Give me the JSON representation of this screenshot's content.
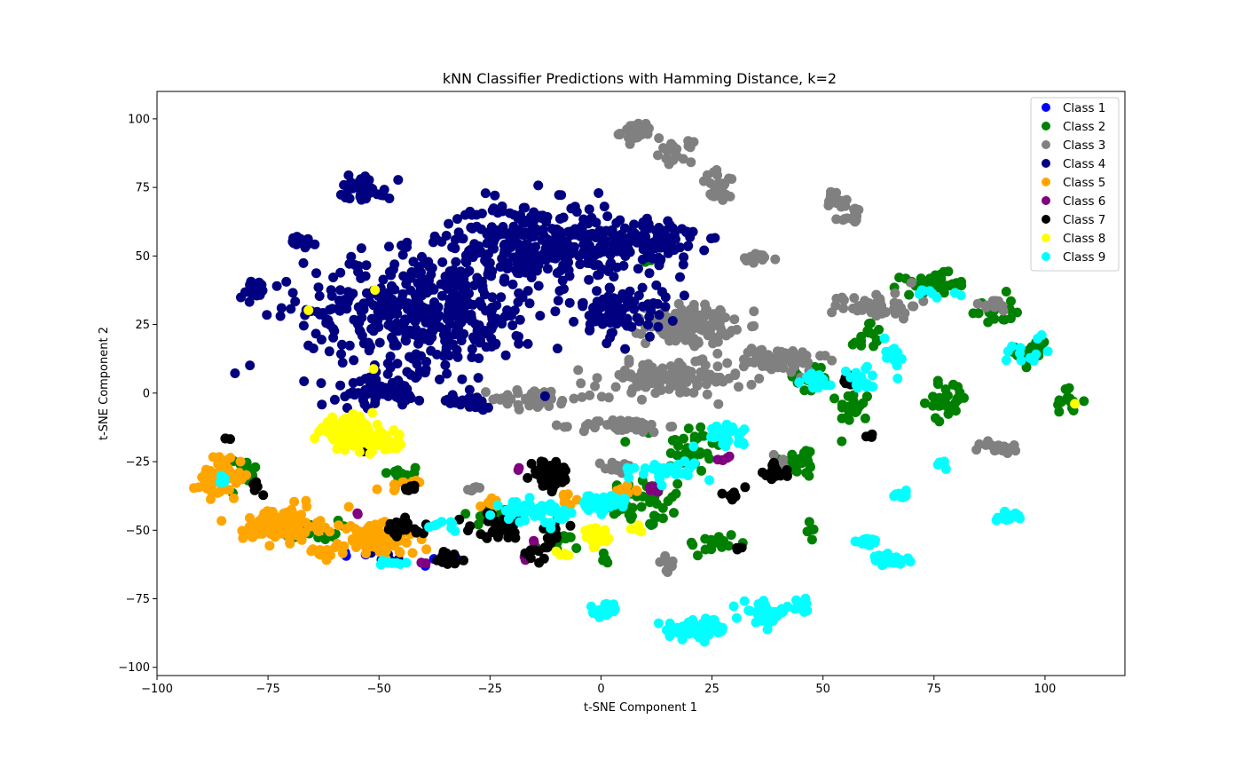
{
  "chart_data": {
    "type": "scatter",
    "title": "kNN Classifier Predictions with Hamming Distance, k=2",
    "xlabel": "t-SNE Component 1",
    "ylabel": "t-SNE Component 2",
    "xlim": [
      -100,
      118
    ],
    "ylim": [
      -103,
      110
    ],
    "xticks": [
      -100,
      -75,
      -50,
      -25,
      0,
      25,
      50,
      75,
      100
    ],
    "yticks": [
      -100,
      -75,
      -50,
      -25,
      0,
      25,
      50,
      75,
      100
    ],
    "grid": false,
    "legend_position": "top-right",
    "series": [
      {
        "name": "Class 1",
        "color": "#0000ff",
        "clusters": [
          {
            "x": -58,
            "y": -58,
            "sx": 3,
            "sy": 2,
            "n": 3
          },
          {
            "x": -40,
            "y": -62,
            "sx": 3,
            "sy": 2,
            "n": 2
          }
        ]
      },
      {
        "name": "Class 2",
        "color": "#008000",
        "clusters": [
          {
            "x": -45,
            "y": -30,
            "sx": 4,
            "sy": 3,
            "n": 15
          },
          {
            "x": -25,
            "y": -45,
            "sx": 5,
            "sy": 4,
            "n": 15
          },
          {
            "x": 10,
            "y": -40,
            "sx": 8,
            "sy": 8,
            "n": 45
          },
          {
            "x": 20,
            "y": -20,
            "sx": 6,
            "sy": 8,
            "n": 35
          },
          {
            "x": 25,
            "y": -55,
            "sx": 5,
            "sy": 4,
            "n": 18
          },
          {
            "x": 45,
            "y": -25,
            "sx": 4,
            "sy": 5,
            "n": 25
          },
          {
            "x": 47,
            "y": 5,
            "sx": 4,
            "sy": 5,
            "n": 20
          },
          {
            "x": 57,
            "y": -5,
            "sx": 3,
            "sy": 5,
            "n": 22
          },
          {
            "x": 60,
            "y": 20,
            "sx": 3,
            "sy": 6,
            "n": 15
          },
          {
            "x": 75,
            "y": 40,
            "sx": 6,
            "sy": 3,
            "n": 35
          },
          {
            "x": 88,
            "y": 30,
            "sx": 4,
            "sy": 5,
            "n": 20
          },
          {
            "x": 97,
            "y": 15,
            "sx": 3,
            "sy": 6,
            "n": 20
          },
          {
            "x": 105,
            "y": -3,
            "sx": 3,
            "sy": 4,
            "n": 15
          },
          {
            "x": 78,
            "y": -2,
            "sx": 4,
            "sy": 6,
            "n": 30
          },
          {
            "x": -65,
            "y": -50,
            "sx": 5,
            "sy": 3,
            "n": 20
          },
          {
            "x": -80,
            "y": -30,
            "sx": 3,
            "sy": 6,
            "n": 12
          },
          {
            "x": -10,
            "y": -55,
            "sx": 4,
            "sy": 3,
            "n": 15
          },
          {
            "x": 47,
            "y": -50,
            "sx": 1,
            "sy": 2,
            "n": 5
          },
          {
            "x": 11,
            "y": 48,
            "sx": 1,
            "sy": 1,
            "n": 2
          },
          {
            "x": 0,
            "y": -60,
            "sx": 2,
            "sy": 2,
            "n": 5
          }
        ]
      },
      {
        "name": "Class 3",
        "color": "#808080",
        "clusters": [
          {
            "x": 8,
            "y": 95,
            "sx": 3,
            "sy": 3,
            "n": 40
          },
          {
            "x": 17,
            "y": 88,
            "sx": 3,
            "sy": 3,
            "n": 20
          },
          {
            "x": 27,
            "y": 75,
            "sx": 4,
            "sy": 5,
            "n": 25
          },
          {
            "x": 35,
            "y": 49,
            "sx": 4,
            "sy": 1.5,
            "n": 15
          },
          {
            "x": 53,
            "y": 70,
            "sx": 2,
            "sy": 4,
            "n": 20
          },
          {
            "x": 57,
            "y": 65,
            "sx": 2,
            "sy": 3,
            "n": 15
          },
          {
            "x": 20,
            "y": 25,
            "sx": 8,
            "sy": 6,
            "n": 130
          },
          {
            "x": 15,
            "y": 5,
            "sx": 14,
            "sy": 5,
            "n": 130
          },
          {
            "x": 40,
            "y": 12,
            "sx": 9,
            "sy": 4,
            "n": 60
          },
          {
            "x": 62,
            "y": 32,
            "sx": 8,
            "sy": 4,
            "n": 45
          },
          {
            "x": -15,
            "y": -2,
            "sx": 8,
            "sy": 3,
            "n": 45
          },
          {
            "x": 5,
            "y": -12,
            "sx": 8,
            "sy": 2,
            "n": 50
          },
          {
            "x": 4,
            "y": -27,
            "sx": 3,
            "sy": 2,
            "n": 20
          },
          {
            "x": 90,
            "y": -20,
            "sx": 4,
            "sy": 2,
            "n": 18
          },
          {
            "x": 88,
            "y": 32,
            "sx": 4,
            "sy": 2,
            "n": 12
          },
          {
            "x": 15,
            "y": -63,
            "sx": 2,
            "sy": 3,
            "n": 10
          },
          {
            "x": -28,
            "y": -35,
            "sx": 2,
            "sy": 1,
            "n": 6
          },
          {
            "x": 40,
            "y": -25,
            "sx": 3,
            "sy": 2,
            "n": 8
          }
        ]
      },
      {
        "name": "Class 4",
        "color": "#000080",
        "clusters": [
          {
            "x": -40,
            "y": 30,
            "sx": 22,
            "sy": 18,
            "n": 450
          },
          {
            "x": -15,
            "y": 55,
            "sx": 16,
            "sy": 12,
            "n": 280
          },
          {
            "x": 10,
            "y": 55,
            "sx": 10,
            "sy": 8,
            "n": 130
          },
          {
            "x": 5,
            "y": 30,
            "sx": 8,
            "sy": 8,
            "n": 90
          },
          {
            "x": -53,
            "y": 75,
            "sx": 5,
            "sy": 4,
            "n": 35
          },
          {
            "x": -68,
            "y": 55,
            "sx": 3,
            "sy": 2,
            "n": 25
          },
          {
            "x": -78,
            "y": 38,
            "sx": 3,
            "sy": 3,
            "n": 22
          },
          {
            "x": -50,
            "y": 0,
            "sx": 8,
            "sy": 4,
            "n": 60
          },
          {
            "x": -30,
            "y": -3,
            "sx": 5,
            "sy": 2,
            "n": 25
          },
          {
            "x": -48,
            "y": -60,
            "sx": 4,
            "sy": 2,
            "n": 6
          },
          {
            "x": -33,
            "y": -60,
            "sx": 2,
            "sy": 2,
            "n": 4
          }
        ]
      },
      {
        "name": "Class 5",
        "color": "#ffa500",
        "clusters": [
          {
            "x": -85,
            "y": -30,
            "sx": 4,
            "sy": 7,
            "n": 45
          },
          {
            "x": -72,
            "y": -48,
            "sx": 7,
            "sy": 5,
            "n": 110
          },
          {
            "x": -50,
            "y": -53,
            "sx": 7,
            "sy": 5,
            "n": 110
          },
          {
            "x": -88,
            "y": -35,
            "sx": 2,
            "sy": 3,
            "n": 10
          },
          {
            "x": -45,
            "y": -33,
            "sx": 3,
            "sy": 2,
            "n": 10
          },
          {
            "x": -25,
            "y": -40,
            "sx": 3,
            "sy": 3,
            "n": 8
          },
          {
            "x": -10,
            "y": -40,
            "sx": 4,
            "sy": 3,
            "n": 12
          },
          {
            "x": 5,
            "y": -36,
            "sx": 3,
            "sy": 2,
            "n": 8
          },
          {
            "x": -62,
            "y": -58,
            "sx": 4,
            "sy": 2,
            "n": 20
          }
        ]
      },
      {
        "name": "Class 6",
        "color": "#800080",
        "clusters": [
          {
            "x": 12,
            "y": -35,
            "sx": 2,
            "sy": 1,
            "n": 6
          },
          {
            "x": 28,
            "y": -24,
            "sx": 2,
            "sy": 1,
            "n": 5
          },
          {
            "x": -18,
            "y": -27,
            "sx": 1,
            "sy": 1,
            "n": 2
          },
          {
            "x": -55,
            "y": -44,
            "sx": 1,
            "sy": 1,
            "n": 2
          },
          {
            "x": -40,
            "y": -62,
            "sx": 1,
            "sy": 1,
            "n": 2
          },
          {
            "x": -17,
            "y": -60,
            "sx": 1,
            "sy": 1,
            "n": 2
          },
          {
            "x": -15,
            "y": -54,
            "sx": 1,
            "sy": 1,
            "n": 2
          }
        ]
      },
      {
        "name": "Class 7",
        "color": "#000000",
        "clusters": [
          {
            "x": -12,
            "y": -30,
            "sx": 3,
            "sy": 4,
            "n": 55
          },
          {
            "x": -22,
            "y": -48,
            "sx": 6,
            "sy": 4,
            "n": 40
          },
          {
            "x": -35,
            "y": -60,
            "sx": 3,
            "sy": 3,
            "n": 30
          },
          {
            "x": -45,
            "y": -50,
            "sx": 5,
            "sy": 3,
            "n": 25
          },
          {
            "x": 39,
            "y": -29,
            "sx": 2,
            "sy": 3,
            "n": 18
          },
          {
            "x": 56,
            "y": 5,
            "sx": 1.5,
            "sy": 3,
            "n": 10
          },
          {
            "x": -84,
            "y": -17,
            "sx": 1,
            "sy": 1,
            "n": 3
          },
          {
            "x": -54,
            "y": -20,
            "sx": 2,
            "sy": 2,
            "n": 5
          },
          {
            "x": -43,
            "y": -35,
            "sx": 2,
            "sy": 1,
            "n": 6
          },
          {
            "x": 29,
            "y": -37,
            "sx": 3,
            "sy": 2,
            "n": 8
          },
          {
            "x": 61,
            "y": -16,
            "sx": 1,
            "sy": 1,
            "n": 3
          },
          {
            "x": 31,
            "y": -56,
            "sx": 1,
            "sy": 1,
            "n": 3
          },
          {
            "x": -77,
            "y": -35,
            "sx": 2,
            "sy": 3,
            "n": 5
          },
          {
            "x": -10,
            "y": -50,
            "sx": 3,
            "sy": 3,
            "n": 10
          },
          {
            "x": -15,
            "y": -58,
            "sx": 3,
            "sy": 3,
            "n": 10
          }
        ]
      },
      {
        "name": "Class 8",
        "color": "#ffff00",
        "clusters": [
          {
            "x": -57,
            "y": -14,
            "sx": 5,
            "sy": 4,
            "n": 140
          },
          {
            "x": -48,
            "y": -18,
            "sx": 3,
            "sy": 3,
            "n": 30
          },
          {
            "x": -1,
            "y": -53,
            "sx": 3,
            "sy": 3,
            "n": 30
          },
          {
            "x": -51,
            "y": 38,
            "sx": 0.5,
            "sy": 0.5,
            "n": 1
          },
          {
            "x": -51,
            "y": 9,
            "sx": 0.5,
            "sy": 0.5,
            "n": 1
          },
          {
            "x": -66,
            "y": 30,
            "sx": 0.5,
            "sy": 0.5,
            "n": 1
          },
          {
            "x": 107,
            "y": -4,
            "sx": 0.5,
            "sy": 0.5,
            "n": 1
          },
          {
            "x": -8,
            "y": -60,
            "sx": 2,
            "sy": 2,
            "n": 5
          },
          {
            "x": 8,
            "y": -50,
            "sx": 2,
            "sy": 1,
            "n": 4
          }
        ]
      },
      {
        "name": "Class 9",
        "color": "#00ffff",
        "clusters": [
          {
            "x": 1,
            "y": -79,
            "sx": 2,
            "sy": 2,
            "n": 30
          },
          {
            "x": 22,
            "y": -86,
            "sx": 6,
            "sy": 3,
            "n": 70
          },
          {
            "x": 37,
            "y": -80,
            "sx": 4,
            "sy": 3,
            "n": 40
          },
          {
            "x": 45,
            "y": -78,
            "sx": 2,
            "sy": 2,
            "n": 15
          },
          {
            "x": 60,
            "y": -54,
            "sx": 2,
            "sy": 1,
            "n": 30
          },
          {
            "x": 65,
            "y": -61,
            "sx": 3,
            "sy": 1.5,
            "n": 40
          },
          {
            "x": 68,
            "y": -37,
            "sx": 1,
            "sy": 1,
            "n": 10
          },
          {
            "x": 92,
            "y": -45,
            "sx": 2,
            "sy": 1,
            "n": 25
          },
          {
            "x": 77,
            "y": -26,
            "sx": 1.5,
            "sy": 1,
            "n": 8
          },
          {
            "x": -15,
            "y": -43,
            "sx": 6,
            "sy": 3,
            "n": 60
          },
          {
            "x": 0,
            "y": -40,
            "sx": 5,
            "sy": 3,
            "n": 40
          },
          {
            "x": 15,
            "y": -28,
            "sx": 6,
            "sy": 3,
            "n": 35
          },
          {
            "x": 28,
            "y": -15,
            "sx": 5,
            "sy": 3,
            "n": 30
          },
          {
            "x": 48,
            "y": 5,
            "sx": 3,
            "sy": 3,
            "n": 20
          },
          {
            "x": 58,
            "y": 5,
            "sx": 3,
            "sy": 4,
            "n": 18
          },
          {
            "x": 66,
            "y": 15,
            "sx": 2,
            "sy": 5,
            "n": 15
          },
          {
            "x": 75,
            "y": 37,
            "sx": 4,
            "sy": 2,
            "n": 8
          },
          {
            "x": 95,
            "y": 15,
            "sx": 5,
            "sy": 6,
            "n": 12
          },
          {
            "x": -47,
            "y": -62,
            "sx": 2,
            "sy": 1,
            "n": 10
          },
          {
            "x": -85,
            "y": -32,
            "sx": 2,
            "sy": 2,
            "n": 5
          },
          {
            "x": -35,
            "y": -48,
            "sx": 3,
            "sy": 2,
            "n": 8
          }
        ]
      }
    ]
  }
}
